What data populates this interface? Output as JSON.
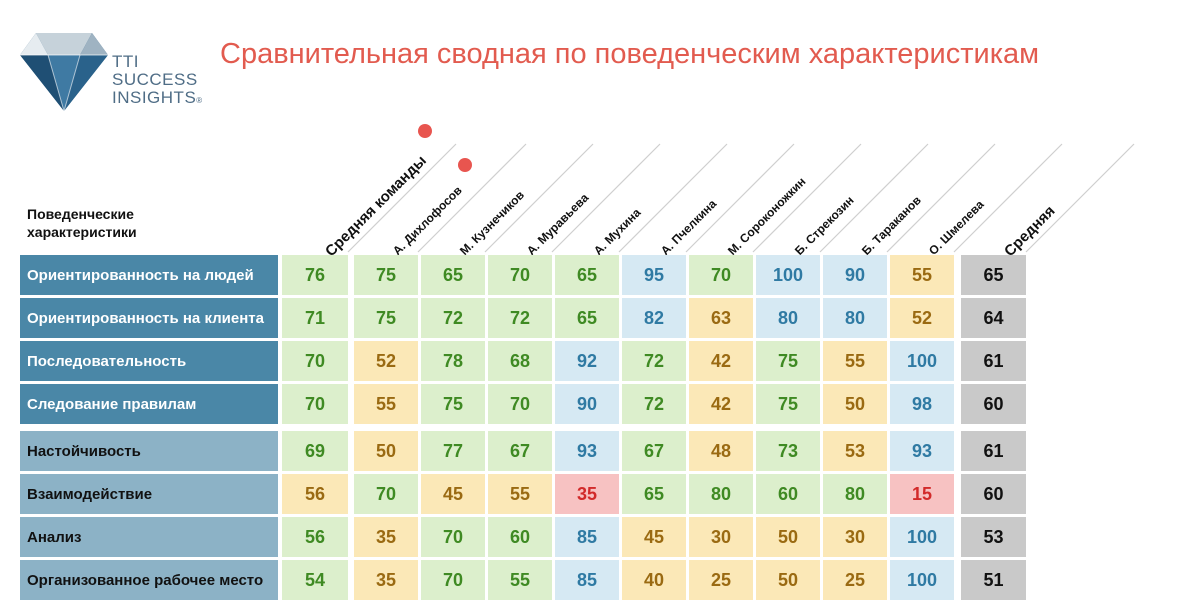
{
  "logo": {
    "line1": "TTI",
    "line2": "SUCCESS",
    "line3": "INSIGHTS",
    "mark": "®"
  },
  "title": "Сравнительная сводная по поведенческим характеристикам",
  "row_header": "Поведенческие характеристики",
  "columns": [
    "Средняя команды",
    "А. Дихлофосов",
    "М. Кузнечиков",
    "А. Муравьева",
    "А. Мухина",
    "А. Пчелкина",
    "М. Сороконожкин",
    "Б. Стрекозин",
    "Б. Тараканов",
    "О. Шмелева",
    "Средняя"
  ],
  "colors": {
    "green": "#dcefcc",
    "blue": "#d6e9f3",
    "yellow": "#fbe8b7",
    "red": "#f7c2c2",
    "gray": "#c9c9c9",
    "label_dark": "#4a87a7",
    "label_light": "#8cb2c6",
    "title": "#e25b4f"
  },
  "rows": [
    {
      "label": "Ориентированность на людей",
      "values": [
        "76",
        "75",
        "65",
        "70",
        "65",
        "95",
        "70",
        "100",
        "90",
        "55",
        "65"
      ],
      "colors": [
        "g",
        "g",
        "g",
        "g",
        "g",
        "b",
        "g",
        "b",
        "b",
        "y",
        "gr"
      ]
    },
    {
      "label": "Ориентированность на клиента",
      "values": [
        "71",
        "75",
        "72",
        "72",
        "65",
        "82",
        "63",
        "80",
        "80",
        "52",
        "64"
      ],
      "colors": [
        "g",
        "g",
        "g",
        "g",
        "g",
        "b",
        "y",
        "b",
        "b",
        "y",
        "gr"
      ]
    },
    {
      "label": "Последовательность",
      "values": [
        "70",
        "52",
        "78",
        "68",
        "92",
        "72",
        "42",
        "75",
        "55",
        "100",
        "61"
      ],
      "colors": [
        "g",
        "y",
        "g",
        "g",
        "b",
        "g",
        "y",
        "g",
        "y",
        "b",
        "gr"
      ]
    },
    {
      "label": "Следование правилам",
      "values": [
        "70",
        "55",
        "75",
        "70",
        "90",
        "72",
        "42",
        "75",
        "50",
        "98",
        "60"
      ],
      "colors": [
        "g",
        "y",
        "g",
        "g",
        "b",
        "g",
        "y",
        "g",
        "y",
        "b",
        "gr"
      ]
    },
    {
      "label": "Настойчивость",
      "values": [
        "69",
        "50",
        "77",
        "67",
        "93",
        "67",
        "48",
        "73",
        "53",
        "93",
        "61"
      ],
      "colors": [
        "g",
        "y",
        "g",
        "g",
        "b",
        "g",
        "y",
        "g",
        "y",
        "b",
        "gr"
      ]
    },
    {
      "label": "Взаимодействие",
      "values": [
        "56",
        "70",
        "45",
        "55",
        "35",
        "65",
        "80",
        "60",
        "80",
        "15",
        "60"
      ],
      "colors": [
        "y",
        "g",
        "y",
        "y",
        "r",
        "g",
        "g",
        "g",
        "g",
        "r",
        "gr"
      ]
    },
    {
      "label": "Анализ",
      "values": [
        "56",
        "35",
        "70",
        "60",
        "85",
        "45",
        "30",
        "50",
        "30",
        "100",
        "53"
      ],
      "colors": [
        "g",
        "y",
        "g",
        "g",
        "b",
        "y",
        "y",
        "y",
        "y",
        "b",
        "gr"
      ]
    },
    {
      "label": "Организованное рабочее место",
      "values": [
        "54",
        "35",
        "70",
        "55",
        "85",
        "40",
        "25",
        "50",
        "25",
        "100",
        "51"
      ],
      "colors": [
        "g",
        "y",
        "g",
        "g",
        "b",
        "y",
        "y",
        "y",
        "y",
        "b",
        "gr"
      ]
    }
  ]
}
